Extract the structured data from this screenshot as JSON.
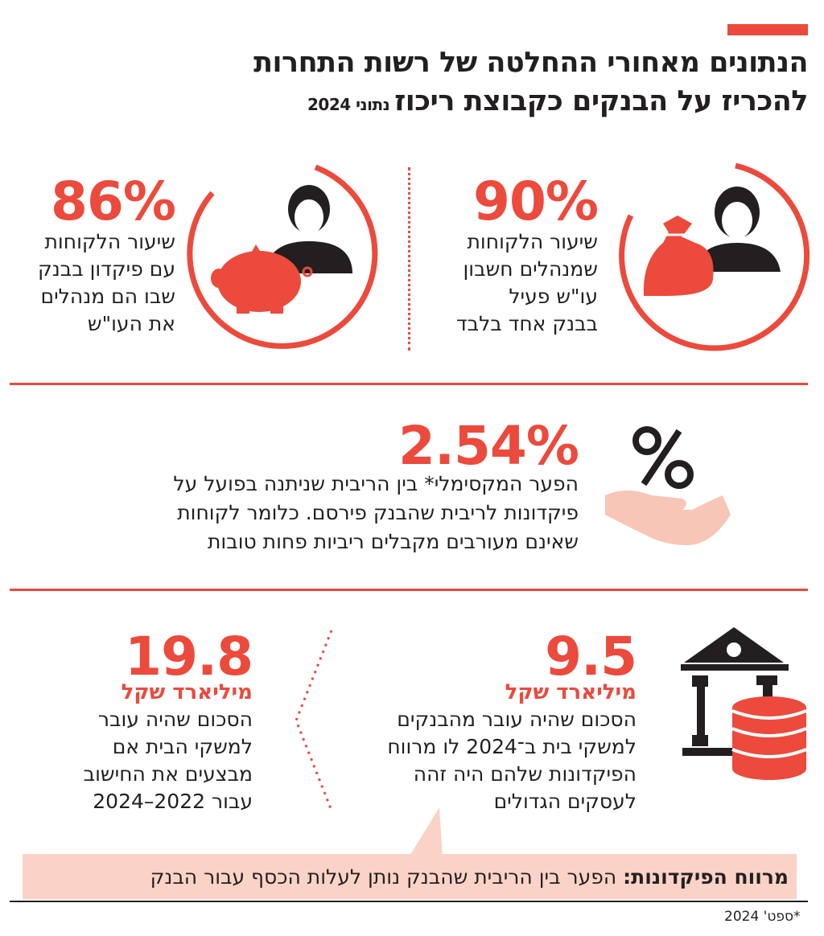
{
  "header": {
    "title_line1": "הנתונים מאחורי ההחלטה של רשות התחרות",
    "title_line2": "להכריז על הבנקים כקבוצת ריכוז",
    "title_note": "נתוני 2024"
  },
  "stats": {
    "single_bank": {
      "value": "90%",
      "description": "שיעור הלקוחות\nשמנהלים חשבון\nעו\"ש פעיל\nבבנק אחד בלבד",
      "icon": "woman-with-money-bag-icon"
    },
    "deposit_same_bank": {
      "value": "86%",
      "description": "שיעור הלקוחות\nעם פיקדון בבנק\nשבו הם מנהלים\nאת העו\"ש",
      "icon": "man-with-piggy-bank-icon"
    },
    "max_gap": {
      "value": "2.54%",
      "description": "הפער המקסימלי* בין הריבית שניתנה בפועל על\nפיקדונות לריבית שהבנק פירסם. כלומר לקוחות\nשאינם מעורבים מקבלים ריביות פחות טובות",
      "icon": "percent-hand-icon"
    },
    "transfer_2024": {
      "value": "9.5",
      "unit": "מיליארד שקל",
      "description": "הסכום שהיה עובר מהבנקים\nלמשקי בית ב־2024 לו מרווח\nהפיקדונות שלהם היה זהה\nלעסקים הגדולים",
      "icon": "bank-coins-icon"
    },
    "transfer_2022_2024": {
      "value": "19.8",
      "unit": "מיליארד שקל",
      "description": "הסכום שהיה עובר\nלמשקי הבית אם\nמבצעים את החישוב\nעבור 2022–2024"
    }
  },
  "callout": {
    "label": "מרווח הפיקדונות:",
    "text": "הפער בין הריבית שהבנק נותן לעלות הכסף עבור הבנק"
  },
  "footnote": "*ספט' 2024",
  "colors": {
    "accent": "#ec4a3c",
    "dark": "#231f20",
    "callout_bg": "#fbd3c6",
    "hand": "#f7c6b6"
  }
}
